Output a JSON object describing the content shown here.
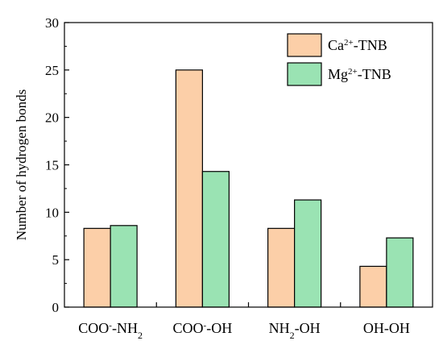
{
  "chart_data": {
    "type": "bar",
    "categories": [
      {
        "main": "COO",
        "sup": "-",
        "rest": "-NH",
        "sub": "2",
        "tail": ""
      },
      {
        "main": "COO",
        "sup": "-",
        "rest": "-OH",
        "sub": "",
        "tail": ""
      },
      {
        "main": "NH",
        "sup": "",
        "rest": "",
        "sub": "2",
        "tail": "-OH"
      },
      {
        "main": "OH-OH",
        "sup": "",
        "rest": "",
        "sub": "",
        "tail": ""
      }
    ],
    "series": [
      {
        "name_main": "Ca",
        "name_sup": "2+",
        "name_rest": "-TNB",
        "color": "#FCCFA8",
        "values": [
          8.3,
          25,
          8.3,
          4.3
        ]
      },
      {
        "name_main": "Mg",
        "name_sup": "2+",
        "name_rest": "-TNB",
        "color": "#9AE3B3",
        "values": [
          8.6,
          14.3,
          11.3,
          7.3
        ]
      }
    ],
    "ylabel": "Number of hydrogen bonds",
    "xlabel": "",
    "ylim": [
      0,
      30
    ],
    "yticks": [
      0,
      5,
      10,
      15,
      20,
      25,
      30
    ],
    "legend": "top-right",
    "grid": false
  }
}
